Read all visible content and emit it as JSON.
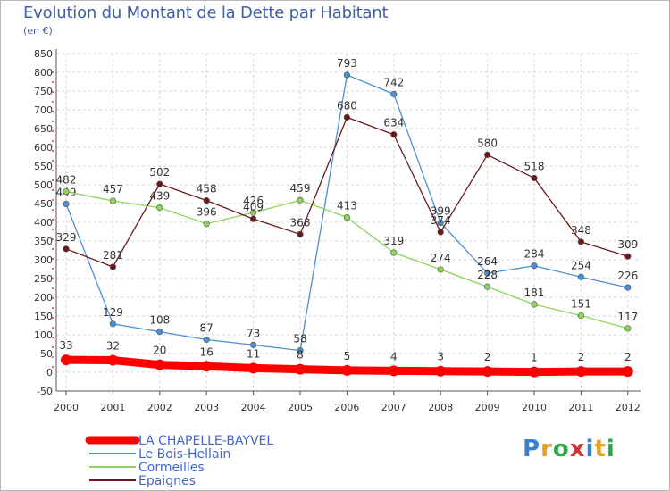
{
  "chart_data": {
    "type": "line",
    "title": "Evolution du Montant de la Dette par Habitant",
    "subtitle": "(en €)",
    "x": [
      "2000",
      "2001",
      "2002",
      "2003",
      "2004",
      "2005",
      "2006",
      "2007",
      "2008",
      "2009",
      "2010",
      "2011",
      "2012"
    ],
    "ylim": [
      -50,
      850
    ],
    "yticks": [
      -50,
      0,
      50,
      100,
      150,
      200,
      250,
      300,
      350,
      400,
      450,
      500,
      550,
      600,
      650,
      700,
      750,
      800,
      850
    ],
    "grid": true,
    "series": [
      {
        "name": "LA CHAPELLE-BAYVEL",
        "color": "#ff0000",
        "values": [
          33,
          32,
          20,
          16,
          11,
          8,
          5,
          4,
          3,
          2,
          1,
          2,
          2
        ]
      },
      {
        "name": "Le Bois-Hellain",
        "color": "#4a8fd0",
        "values": [
          449,
          129,
          108,
          87,
          73,
          58,
          793,
          742,
          399,
          264,
          284,
          254,
          226
        ]
      },
      {
        "name": "Cormeilles",
        "color": "#8fd45a",
        "values": [
          482,
          457,
          439,
          396,
          426,
          459,
          413,
          319,
          274,
          228,
          181,
          151,
          117
        ]
      },
      {
        "name": "Epaignes",
        "color": "#6b1a1a",
        "values": [
          329,
          281,
          502,
          458,
          409,
          368,
          680,
          634,
          374,
          580,
          518,
          348,
          309
        ]
      }
    ],
    "legend_position": "bottom-left"
  },
  "branding": {
    "logo_text": "Proxiti"
  }
}
